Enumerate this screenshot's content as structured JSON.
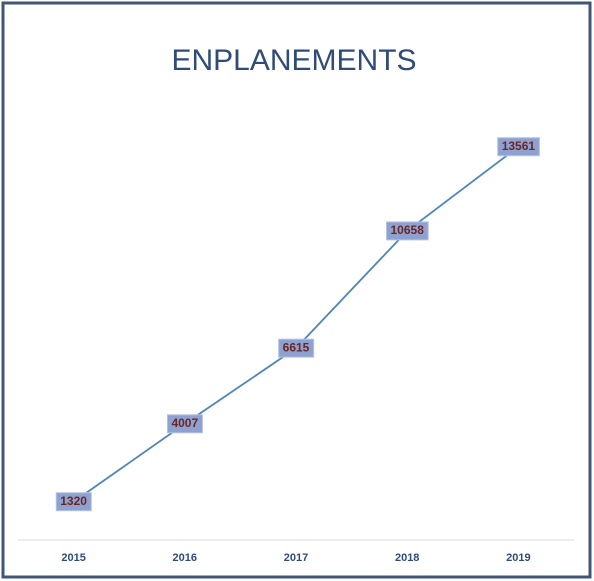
{
  "chart_data": {
    "type": "line",
    "title": "ENPLANEMENTS",
    "categories": [
      "2015",
      "2016",
      "2017",
      "2018",
      "2019"
    ],
    "values": [
      1320,
      4007,
      6615,
      10658,
      13561
    ],
    "color": "#4f86b8",
    "ylim": [
      0,
      16000
    ]
  }
}
